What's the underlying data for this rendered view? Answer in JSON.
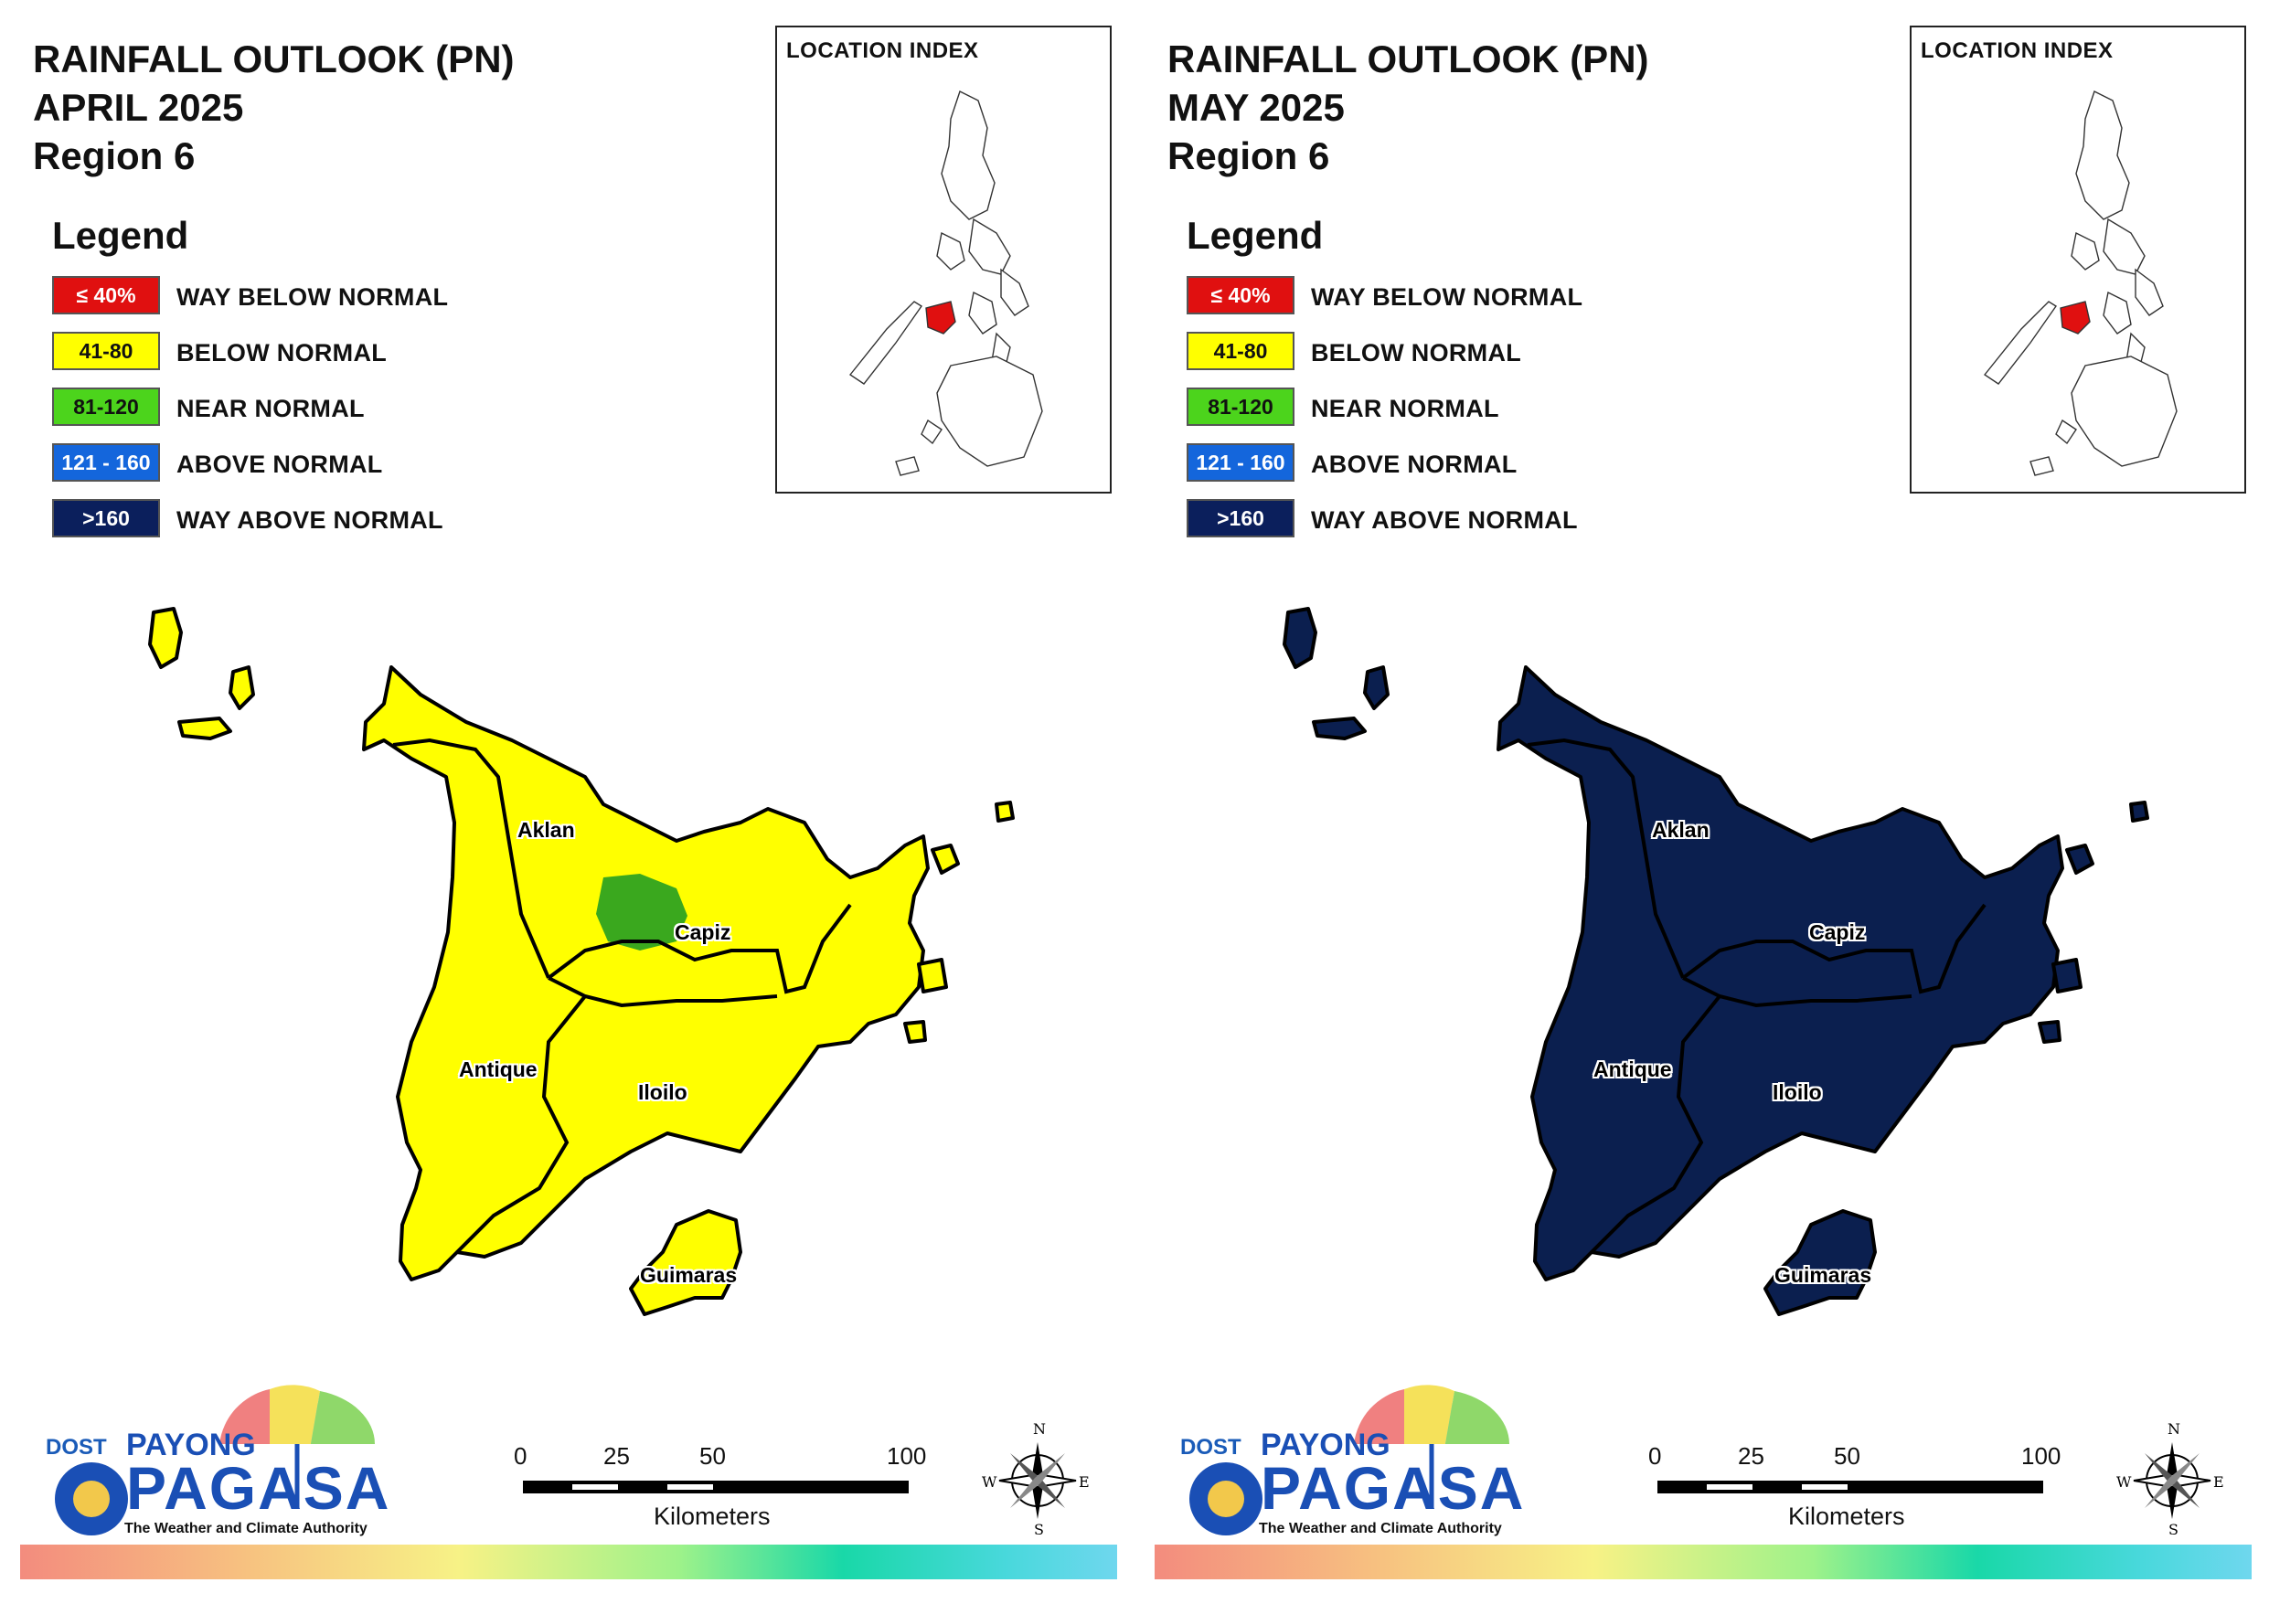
{
  "legend": {
    "heading": "Legend",
    "items": [
      {
        "range": "≤ 40%",
        "label": "WAY BELOW NORMAL",
        "color": "#e01010",
        "text_color": "#ffffff"
      },
      {
        "range": "41-80",
        "label": "BELOW NORMAL",
        "color": "#ffff00",
        "text_color": "#111111"
      },
      {
        "range": "81-120",
        "label": "NEAR NORMAL",
        "color": "#4cd41c",
        "text_color": "#111111"
      },
      {
        "range": "121 - 160",
        "label": "ABOVE NORMAL",
        "color": "#1466dc",
        "text_color": "#ffffff"
      },
      {
        "range": ">160",
        "label": "WAY ABOVE NORMAL",
        "color": "#0b1f5c",
        "text_color": "#ffffff"
      }
    ]
  },
  "location_index": {
    "title": "LOCATION INDEX",
    "highlight_color": "#e01010"
  },
  "maps": [
    {
      "title_line1": "RAINFALL OUTLOOK (PN)",
      "title_line2": "APRIL 2025",
      "title_line3": "Region 6",
      "fill_color": "#ffff00",
      "sub_area": {
        "province": "Capiz",
        "category": "NEAR NORMAL",
        "color": "#3aa81e"
      },
      "provinces": [
        "Aklan",
        "Capiz",
        "Antique",
        "Iloilo",
        "Guimaras"
      ],
      "province_category": "BELOW NORMAL"
    },
    {
      "title_line1": "RAINFALL OUTLOOK (PN)",
      "title_line2": "MAY 2025",
      "title_line3": "Region 6",
      "fill_color": "#0b1f4f",
      "provinces": [
        "Aklan",
        "Capiz",
        "Antique",
        "Iloilo",
        "Guimaras"
      ],
      "province_category": "WAY ABOVE NORMAL"
    }
  ],
  "logo": {
    "dost": "DOST",
    "payong": "PAYONG",
    "pagasa": "PAGASA",
    "tagline": "The Weather and Climate Authority"
  },
  "scale": {
    "ticks": [
      "0",
      "25",
      "50",
      "100"
    ],
    "units": "Kilometers"
  },
  "compass": {
    "n": "N",
    "s": "S",
    "e": "E",
    "w": "W"
  }
}
